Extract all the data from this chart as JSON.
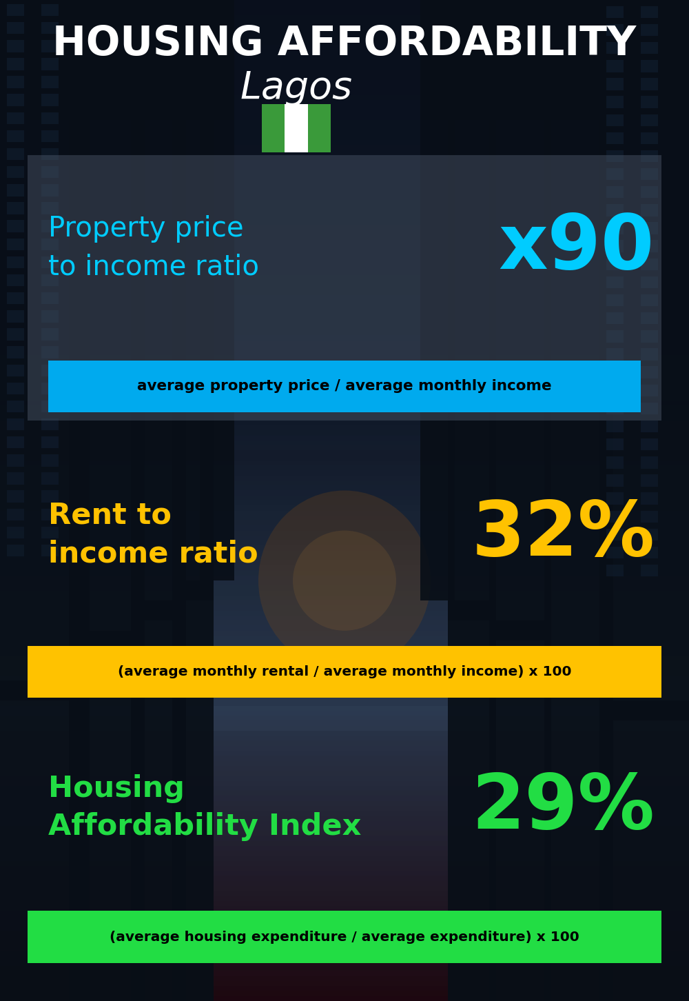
{
  "title_line1": "HOUSING AFFORDABILITY",
  "title_line2": "Lagos",
  "section1_label": "Property price\nto income ratio",
  "section1_value": "x90",
  "section1_label_color": "#00ccff",
  "section1_value_color": "#00ccff",
  "section1_band_text": "average property price / average monthly income",
  "section1_band_color": "#00aaee",
  "section2_label": "Rent to\nincome ratio",
  "section2_value": "32%",
  "section2_label_color": "#ffc200",
  "section2_value_color": "#ffc200",
  "section2_band_text": "(average monthly rental / average monthly income) x 100",
  "section2_band_color": "#ffc200",
  "section3_label": "Housing\nAffordability Index",
  "section3_value": "29%",
  "section3_label_color": "#22dd44",
  "section3_value_color": "#22dd44",
  "section3_band_text": "(average housing expenditure / average expenditure) x 100",
  "section3_band_color": "#22dd44",
  "bg_color": "#08111a",
  "title_color": "#ffffff",
  "band_text_color": "#000000",
  "flag_green": "#3a9a3a",
  "flag_white": "#ffffff",
  "panel1_color": [
    0.25,
    0.3,
    0.38,
    0.5
  ],
  "panel2_color": [
    0.1,
    0.12,
    0.16,
    0.6
  ],
  "panel3_color": [
    0.1,
    0.12,
    0.16,
    0.6
  ],
  "sky_color_top": "#1a2a3a",
  "sky_color_mid": "#2a3f55",
  "sky_color_bottom": "#0a1520",
  "glow_color": "#c8803a"
}
